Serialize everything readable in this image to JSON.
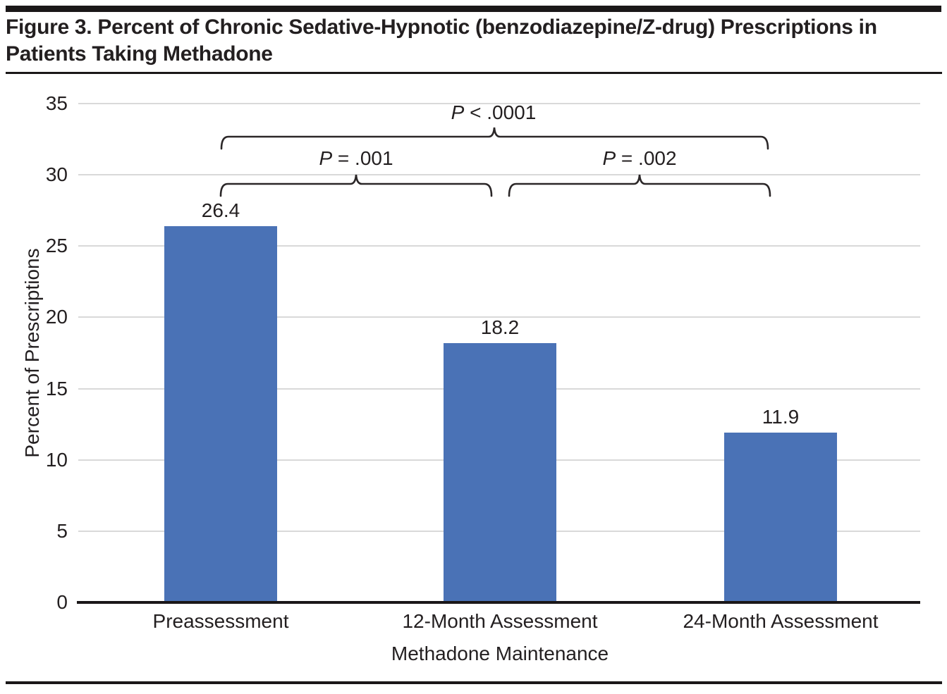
{
  "figure": {
    "title": "Figure 3. Percent of Chronic Sedative-Hypnotic (benzodiazepine/Z-drug) Prescriptions in Patients Taking Methadone"
  },
  "chart_data": {
    "type": "bar",
    "title": "Figure 3. Percent of Chronic Sedative-Hypnotic (benzodiazepine/Z-drug) Prescriptions in Patients Taking Methadone",
    "categories": [
      "Preassessment",
      "12-Month Assessment",
      "24-Month Assessment"
    ],
    "values": [
      26.4,
      18.2,
      11.9
    ],
    "value_labels": [
      "26.4",
      "18.2",
      "11.9"
    ],
    "xlabel": "Methadone Maintenance",
    "ylabel": "Percent of Prescriptions",
    "ylim": [
      0,
      35
    ],
    "yticks": [
      0,
      5,
      10,
      15,
      20,
      25,
      30,
      35
    ],
    "grid": true,
    "legend_position": "none",
    "bar_color": "#4a72b6",
    "gridline_color": "#d9d9d9",
    "axis_color": "#1a1718",
    "text_color": "#231f20",
    "annotations": [
      {
        "label": "P < .0001",
        "from": "Preassessment",
        "to": "24-Month Assessment"
      },
      {
        "label": "P = .001",
        "from": "Preassessment",
        "to": "12-Month Assessment"
      },
      {
        "label": "P = .002",
        "from": "12-Month Assessment",
        "to": "24-Month Assessment"
      }
    ]
  }
}
